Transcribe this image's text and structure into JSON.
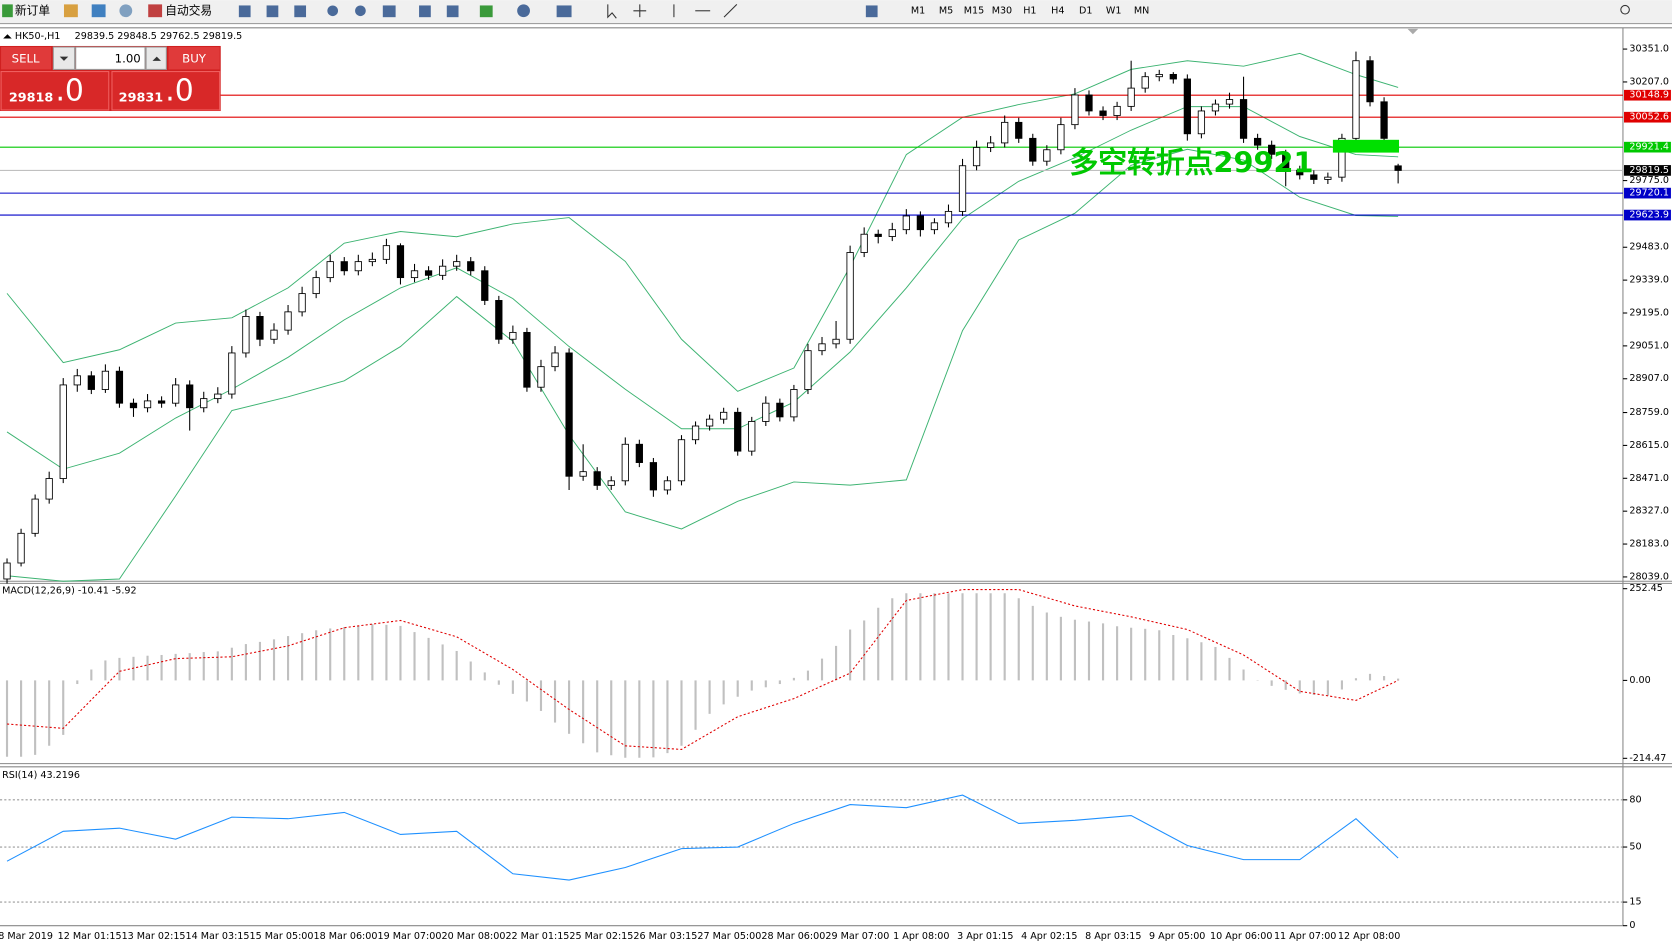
{
  "toolbar": {
    "new_order": "新订单",
    "auto_trade": "自动交易",
    "timeframes": [
      "M1",
      "M5",
      "M15",
      "M30",
      "H1",
      "H4",
      "D1",
      "W1",
      "MN"
    ]
  },
  "trade_panel": {
    "sell": "SELL",
    "buy": "BUY",
    "lot": "1.00",
    "bid_main": "29818",
    "bid_frac": ".0",
    "ask_main": "29831",
    "ask_frac": ".0"
  },
  "chart_data": [
    {
      "type": "candlestick",
      "title": "HK50-,H1",
      "ohlc_label": "29839.5 29848.5 29762.5 29819.5",
      "annotation": "多空转折点29921",
      "xlim": [
        -0.5,
        115
      ],
      "ylim": [
        28020,
        30444
      ],
      "yticks": [
        {
          "value": 30351,
          "label": "30351.0"
        },
        {
          "value": 30207,
          "label": "30207.0"
        },
        {
          "value": 29775,
          "label": "29775.0"
        },
        {
          "value": 29483,
          "label": "29483.0"
        },
        {
          "value": 29339,
          "label": "29339.0"
        },
        {
          "value": 29195,
          "label": "29195.0"
        },
        {
          "value": 29051,
          "label": "29051.0"
        },
        {
          "value": 28907,
          "label": "28907.0"
        },
        {
          "value": 28759,
          "label": "28759.0"
        },
        {
          "value": 28615,
          "label": "28615.0"
        },
        {
          "value": 28471,
          "label": "28471.0"
        },
        {
          "value": 28327,
          "label": "28327.0"
        },
        {
          "value": 28183,
          "label": "28183.0"
        },
        {
          "value": 28039,
          "label": "28039.0"
        }
      ],
      "levels": [
        {
          "value": 30148.9,
          "color": "#e00000"
        },
        {
          "value": 30052.6,
          "color": "#e00000"
        },
        {
          "value": 29921.4,
          "color": "#00c800"
        },
        {
          "value": 29720.1,
          "color": "#0000c8"
        },
        {
          "value": 29623.9,
          "color": "#0000c8"
        }
      ],
      "last_price": 29819.5,
      "xlabels": [
        "8 Mar 2019",
        "12 Mar 01:15",
        "13 Mar 02:15",
        "14 Mar 03:15",
        "15 Mar 05:00",
        "18 Mar 06:00",
        "19 Mar 07:00",
        "20 Mar 08:00",
        "22 Mar 01:15",
        "25 Mar 02:15",
        "26 Mar 03:15",
        "27 Mar 05:00",
        "28 Mar 06:00",
        "29 Mar 07:00",
        "1 Apr 08:00",
        "3 Apr 01:15",
        "4 Apr 02:15",
        "8 Apr 03:15",
        "9 Apr 05:00",
        "10 Apr 06:00",
        "11 Apr 07:00",
        "12 Apr 08:00"
      ],
      "candles": [
        [
          28030,
          28120,
          28010,
          28100
        ],
        [
          28100,
          28250,
          28085,
          28230
        ],
        [
          28230,
          28400,
          28215,
          28380
        ],
        [
          28380,
          28500,
          28360,
          28470
        ],
        [
          28470,
          28910,
          28450,
          28880
        ],
        [
          28880,
          28950,
          28850,
          28920
        ],
        [
          28920,
          28940,
          28840,
          28860
        ],
        [
          28860,
          28970,
          28845,
          28940
        ],
        [
          28940,
          28960,
          28780,
          28800
        ],
        [
          28800,
          28820,
          28740,
          28780
        ],
        [
          28780,
          28840,
          28760,
          28810
        ],
        [
          28810,
          28830,
          28780,
          28800
        ],
        [
          28800,
          28910,
          28785,
          28880
        ],
        [
          28880,
          28900,
          28680,
          28780
        ],
        [
          28780,
          28850,
          28760,
          28820
        ],
        [
          28820,
          28870,
          28800,
          28840
        ],
        [
          28840,
          29050,
          28820,
          29020
        ],
        [
          29020,
          29210,
          29000,
          29180
        ],
        [
          29180,
          29200,
          29050,
          29080
        ],
        [
          29080,
          29150,
          29060,
          29120
        ],
        [
          29120,
          29230,
          29100,
          29200
        ],
        [
          29200,
          29310,
          29180,
          29280
        ],
        [
          29280,
          29380,
          29260,
          29350
        ],
        [
          29350,
          29450,
          29330,
          29420
        ],
        [
          29420,
          29440,
          29360,
          29380
        ],
        [
          29380,
          29450,
          29360,
          29420
        ],
        [
          29420,
          29460,
          29400,
          29430
        ],
        [
          29430,
          29520,
          29410,
          29490
        ],
        [
          29490,
          29500,
          29320,
          29350
        ],
        [
          29350,
          29410,
          29330,
          29380
        ],
        [
          29380,
          29400,
          29340,
          29360
        ],
        [
          29360,
          29430,
          29340,
          29400
        ],
        [
          29400,
          29450,
          29380,
          29420
        ],
        [
          29420,
          29440,
          29360,
          29380
        ],
        [
          29380,
          29400,
          29230,
          29250
        ],
        [
          29250,
          29270,
          29060,
          29080
        ],
        [
          29080,
          29140,
          29060,
          29110
        ],
        [
          29110,
          29130,
          28850,
          28870
        ],
        [
          28870,
          28990,
          28850,
          28960
        ],
        [
          28960,
          29050,
          28940,
          29020
        ],
        [
          29020,
          29040,
          28420,
          28480
        ],
        [
          28480,
          28620,
          28460,
          28500
        ],
        [
          28500,
          28520,
          28420,
          28440
        ],
        [
          28440,
          28480,
          28420,
          28460
        ],
        [
          28460,
          28650,
          28440,
          28620
        ],
        [
          28620,
          28640,
          28520,
          28540
        ],
        [
          28540,
          28560,
          28390,
          28420
        ],
        [
          28420,
          28480,
          28400,
          28460
        ],
        [
          28460,
          28660,
          28440,
          28640
        ],
        [
          28640,
          28720,
          28620,
          28700
        ],
        [
          28700,
          28750,
          28680,
          28730
        ],
        [
          28730,
          28780,
          28710,
          28760
        ],
        [
          28760,
          28780,
          28570,
          28590
        ],
        [
          28590,
          28740,
          28570,
          28720
        ],
        [
          28720,
          28830,
          28700,
          28800
        ],
        [
          28800,
          28820,
          28720,
          28740
        ],
        [
          28740,
          28880,
          28720,
          28860
        ],
        [
          28860,
          29060,
          28840,
          29030
        ],
        [
          29030,
          29090,
          29010,
          29060
        ],
        [
          29060,
          29160,
          29040,
          29080
        ],
        [
          29080,
          29490,
          29060,
          29460
        ],
        [
          29460,
          29570,
          29440,
          29540
        ],
        [
          29540,
          29560,
          29500,
          29530
        ],
        [
          29530,
          29590,
          29510,
          29560
        ],
        [
          29560,
          29650,
          29540,
          29620
        ],
        [
          29620,
          29640,
          29530,
          29560
        ],
        [
          29560,
          29610,
          29540,
          29590
        ],
        [
          29590,
          29670,
          29570,
          29640
        ],
        [
          29640,
          29870,
          29620,
          29840
        ],
        [
          29840,
          29950,
          29820,
          29920
        ],
        [
          29920,
          29970,
          29900,
          29940
        ],
        [
          29940,
          30060,
          29920,
          30030
        ],
        [
          30030,
          30050,
          29940,
          29960
        ],
        [
          29960,
          29980,
          29840,
          29860
        ],
        [
          29860,
          29930,
          29840,
          29910
        ],
        [
          29910,
          30050,
          29890,
          30020
        ],
        [
          30020,
          30180,
          30000,
          30150
        ],
        [
          30150,
          30170,
          30060,
          30080
        ],
        [
          30080,
          30100,
          30040,
          30060
        ],
        [
          30060,
          30120,
          30040,
          30100
        ],
        [
          30100,
          30300,
          30080,
          30180
        ],
        [
          30180,
          30250,
          30160,
          30230
        ],
        [
          30230,
          30260,
          30210,
          30240
        ],
        [
          30240,
          30250,
          30200,
          30220
        ],
        [
          30220,
          30240,
          29950,
          29980
        ],
        [
          29980,
          30100,
          29960,
          30080
        ],
        [
          30080,
          30130,
          30060,
          30110
        ],
        [
          30110,
          30160,
          30090,
          30130
        ],
        [
          30130,
          30230,
          29940,
          29960
        ],
        [
          29960,
          29980,
          29910,
          29930
        ],
        [
          29930,
          29950,
          29870,
          29890
        ],
        [
          29890,
          29910,
          29750,
          29820
        ],
        [
          29820,
          29840,
          29780,
          29800
        ],
        [
          29800,
          29820,
          29760,
          29780
        ],
        [
          29780,
          29810,
          29760,
          29790
        ],
        [
          29790,
          29980,
          29770,
          29960
        ],
        [
          29960,
          30340,
          29940,
          30300
        ],
        [
          30300,
          30320,
          30100,
          30120
        ],
        [
          30120,
          30140,
          29940,
          29960
        ],
        [
          29839.5,
          29848.5,
          29762.5,
          29819.5
        ]
      ],
      "band_x": [
        0,
        4,
        8,
        12,
        16,
        20,
        24,
        28,
        32,
        36,
        40,
        44,
        48,
        52,
        56,
        60,
        64,
        68,
        72,
        76,
        80,
        84,
        88,
        92,
        96,
        99
      ],
      "band_color": "#3cb371",
      "bands": {
        "upper": [
          29281,
          28978,
          29034,
          29151,
          29174,
          29305,
          29501,
          29552,
          29529,
          29585,
          29613,
          29421,
          29080,
          28852,
          28954,
          29398,
          29889,
          30052,
          30108,
          30155,
          30262,
          30300,
          30276,
          30332,
          30239,
          30183
        ],
        "middle": [
          28674,
          28511,
          28581,
          28735,
          28861,
          29001,
          29165,
          29305,
          29393,
          29258,
          29048,
          28861,
          28688,
          28688,
          28805,
          29024,
          29305,
          29608,
          29772,
          29875,
          29996,
          30099,
          30099,
          29968,
          29889,
          29879
        ],
        "lower": [
          28044,
          28020,
          28030,
          28394,
          28768,
          28828,
          28898,
          29048,
          29267,
          29071,
          28660,
          28324,
          28249,
          28370,
          28455,
          28441,
          28464,
          29118,
          29515,
          29632,
          29842,
          29912,
          29865,
          29702,
          29622,
          29618
        ]
      }
    },
    {
      "type": "macd",
      "title": "MACD(12,26,9) -10.41 -5.92",
      "ylim": [
        -229,
        267
      ],
      "yticks": [
        {
          "value": 252.45,
          "label": "252.45"
        },
        {
          "value": 0,
          "label": "0.00"
        },
        {
          "value": -214.47,
          "label": "-214.47"
        }
      ],
      "histogram_color": "#c0c0c0",
      "signal_color": "#e00000",
      "histogram": [
        -210,
        -210,
        -205,
        -180,
        -150,
        -10,
        30,
        55,
        62,
        65,
        68,
        70,
        73,
        75,
        78,
        80,
        90,
        100,
        106,
        113,
        122,
        130,
        138,
        143,
        147,
        151,
        155,
        153,
        150,
        133,
        117,
        99,
        81,
        52,
        22,
        -12,
        -37,
        -58,
        -84,
        -116,
        -147,
        -173,
        -198,
        -206,
        -213,
        -213,
        -212,
        -200,
        -180,
        -136,
        -92,
        -66,
        -45,
        -28,
        -19,
        -10,
        7,
        27,
        60,
        95,
        140,
        165,
        200,
        226,
        240,
        240,
        240,
        240,
        240,
        240,
        240,
        240,
        226,
        205,
        187,
        175,
        167,
        162,
        157,
        149,
        145,
        142,
        138,
        125,
        116,
        105,
        92,
        62,
        30,
        -1,
        -15,
        -26,
        -36,
        -40,
        -42,
        -25,
        6,
        18,
        12,
        5
      ],
      "x": [
        0,
        4,
        8,
        12,
        16,
        20,
        24,
        28,
        32,
        36,
        40,
        44,
        48,
        52,
        56,
        60,
        64,
        68,
        72,
        76,
        80,
        84,
        88,
        92,
        96,
        99
      ],
      "signal": [
        -120,
        -132,
        25,
        60,
        65,
        95,
        145,
        165,
        120,
        30,
        -80,
        -180,
        -190,
        -100,
        -50,
        20,
        220,
        250,
        250,
        205,
        175,
        140,
        70,
        -30,
        -55,
        0
      ]
    },
    {
      "type": "rsi",
      "title": "RSI(14) 43.2196",
      "ylim": [
        0,
        101
      ],
      "yticks": [
        80,
        50,
        15,
        0
      ],
      "levels": [
        80,
        50,
        15
      ],
      "color": "#1e90ff",
      "x": [
        0,
        4,
        8,
        12,
        16,
        20,
        24,
        28,
        32,
        36,
        40,
        44,
        48,
        52,
        56,
        60,
        64,
        68,
        72,
        76,
        80,
        84,
        88,
        92,
        96,
        99
      ],
      "values": [
        41,
        60,
        62,
        55,
        69,
        68,
        72,
        58,
        60,
        33,
        29,
        37,
        49,
        50,
        65,
        77,
        75,
        83,
        65,
        67,
        70,
        51,
        42,
        42,
        68,
        43
      ]
    }
  ]
}
